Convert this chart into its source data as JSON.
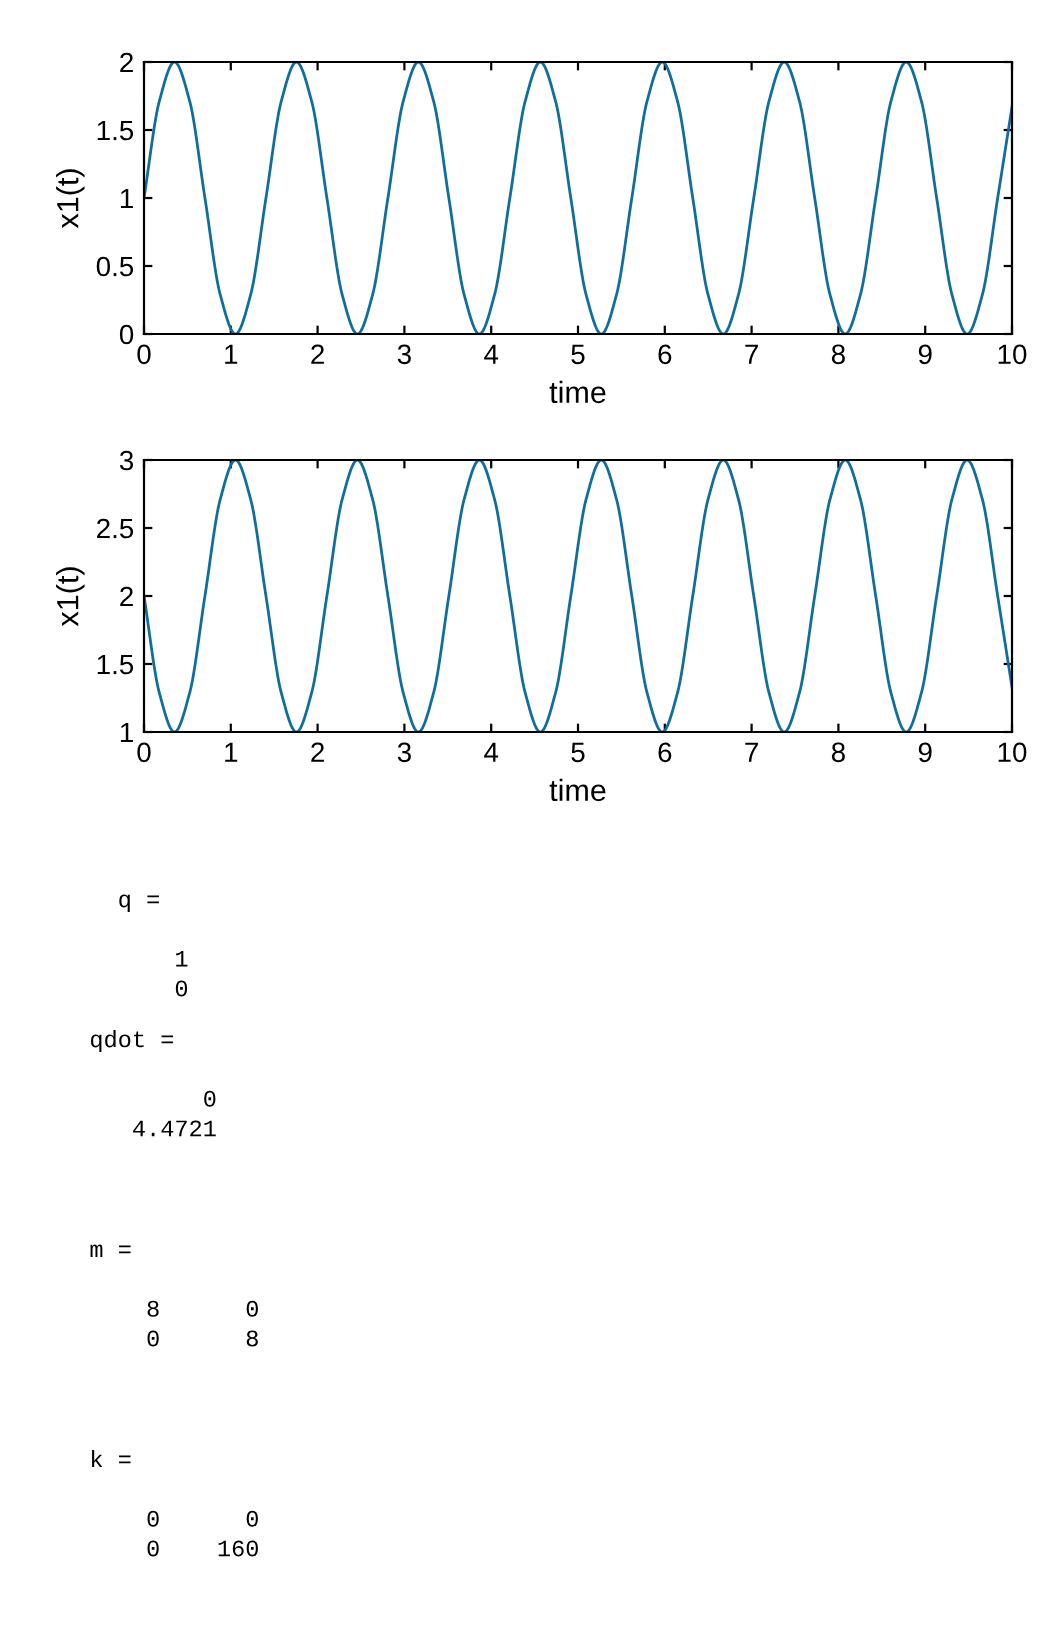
{
  "chart_data": [
    {
      "type": "line",
      "xlabel": "time",
      "ylabel": "x1(t)",
      "xlim": [
        0,
        10
      ],
      "ylim": [
        0,
        2
      ],
      "xticks": [
        0,
        1,
        2,
        3,
        4,
        5,
        6,
        7,
        8,
        9,
        10
      ],
      "yticks": [
        0,
        0.5,
        1,
        1.5,
        2
      ],
      "grid": false,
      "legend": false,
      "x": [
        0,
        0.176,
        0.351,
        0.527,
        0.702,
        0.878,
        1.054,
        1.229,
        1.405,
        1.581,
        1.756,
        1.932,
        2.107,
        2.283,
        2.459,
        2.634,
        2.81,
        2.986,
        3.161,
        3.337,
        3.512,
        3.688,
        3.864,
        4.039,
        4.215,
        4.391,
        4.566,
        4.742,
        4.917,
        5.093,
        5.269,
        5.444,
        5.62,
        5.795,
        5.971,
        6.147,
        6.322,
        6.498,
        6.674,
        6.849,
        7.025,
        7.2,
        7.376,
        7.552,
        7.727,
        7.903,
        8.079,
        8.254,
        8.43,
        8.605,
        8.781,
        8.957,
        9.132,
        9.308,
        9.483,
        9.659,
        9.835,
        10
      ],
      "series": [
        {
          "color": "#0f6f9c",
          "values": [
            1,
            1.71,
            2,
            1.71,
            1,
            0.29,
            0,
            0.29,
            1,
            1.71,
            2,
            1.71,
            1,
            0.29,
            0,
            0.29,
            1,
            1.71,
            2,
            1.71,
            1,
            0.29,
            0,
            0.29,
            1,
            1.71,
            2,
            1.71,
            1,
            0.29,
            0,
            0.29,
            1,
            1.71,
            2,
            1.71,
            1,
            0.29,
            0,
            0.29,
            1,
            1.71,
            2,
            1.71,
            1,
            0.29,
            0,
            0.29,
            1,
            1.71,
            2,
            1.71,
            1,
            0.29,
            0,
            0.29,
            1,
            1.67
          ]
        }
      ]
    },
    {
      "type": "line",
      "xlabel": "time",
      "ylabel": "x1(t)",
      "xlim": [
        0,
        10
      ],
      "ylim": [
        1,
        3
      ],
      "xticks": [
        0,
        1,
        2,
        3,
        4,
        5,
        6,
        7,
        8,
        9,
        10
      ],
      "yticks": [
        1,
        1.5,
        2,
        2.5,
        3
      ],
      "grid": false,
      "legend": false,
      "x": [
        0,
        0.176,
        0.351,
        0.527,
        0.702,
        0.878,
        1.054,
        1.229,
        1.405,
        1.581,
        1.756,
        1.932,
        2.107,
        2.283,
        2.459,
        2.634,
        2.81,
        2.986,
        3.161,
        3.337,
        3.512,
        3.688,
        3.864,
        4.039,
        4.215,
        4.391,
        4.566,
        4.742,
        4.917,
        5.093,
        5.269,
        5.444,
        5.62,
        5.795,
        5.971,
        6.147,
        6.322,
        6.498,
        6.674,
        6.849,
        7.025,
        7.2,
        7.376,
        7.552,
        7.727,
        7.903,
        8.079,
        8.254,
        8.43,
        8.605,
        8.781,
        8.957,
        9.132,
        9.308,
        9.483,
        9.659,
        9.835,
        10
      ],
      "series": [
        {
          "color": "#0f6f9c",
          "values": [
            2,
            1.29,
            1,
            1.29,
            2,
            2.71,
            3,
            2.71,
            2,
            1.29,
            1,
            1.29,
            2,
            2.71,
            3,
            2.71,
            2,
            1.29,
            1,
            1.29,
            2,
            2.71,
            3,
            2.71,
            2,
            1.29,
            1,
            1.29,
            2,
            2.71,
            3,
            2.71,
            2,
            1.29,
            1,
            1.29,
            2,
            2.71,
            3,
            2.71,
            2,
            1.29,
            1,
            1.29,
            2,
            2.71,
            3,
            2.71,
            2,
            1.29,
            1,
            1.29,
            2,
            2.71,
            3,
            2.71,
            2,
            1.33
          ]
        }
      ]
    },
    {
      "type": "other",
      "annotations": [
        "  q =\n\n      1\n      0",
        "qdot =\n\n        0\n   4.4721\n\n",
        "m =\n\n    8      0\n    0      8\n\n",
        "k =\n\n    0      0\n    0    160"
      ]
    }
  ]
}
